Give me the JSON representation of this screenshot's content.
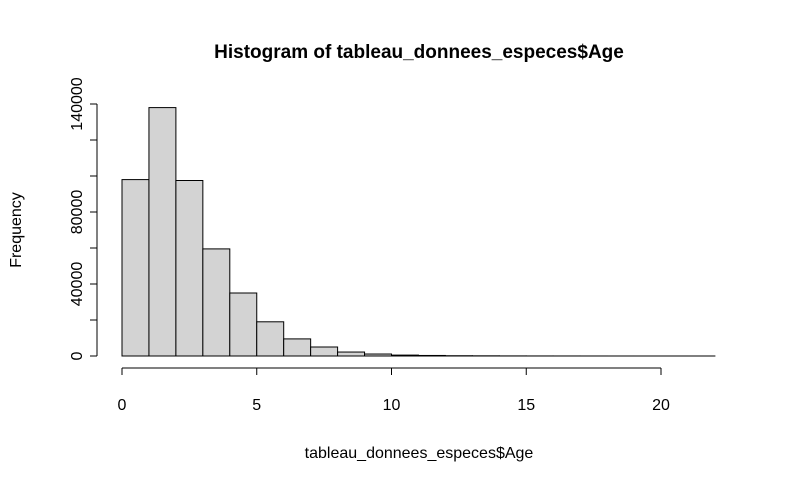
{
  "chart_data": {
    "type": "histogram",
    "title": "Histogram of tableau_donnees_especes$Age",
    "x_label": "tableau_donnees_especes$Age",
    "y_label": "Frequency",
    "bins": [
      0,
      1,
      2,
      3,
      4,
      5,
      6,
      7,
      8,
      9,
      10,
      11,
      12,
      13,
      14,
      15,
      16,
      17,
      18,
      19,
      20,
      21,
      22
    ],
    "counts": [
      98000,
      138000,
      97500,
      59500,
      35000,
      19000,
      9500,
      5000,
      2200,
      1100,
      500,
      300,
      150,
      100,
      50,
      30,
      20,
      10,
      5,
      3,
      2,
      1
    ],
    "color": "#d3d3d3",
    "xlim": [
      0,
      20
    ],
    "xticks": [
      0,
      5,
      10,
      15,
      20
    ],
    "ylim": [
      0,
      140000
    ],
    "yticks": [
      0,
      {
        "value": 20000,
        "label": null
      },
      40000,
      {
        "value": 60000,
        "label": null
      },
      80000,
      {
        "value": 100000,
        "label": null
      },
      {
        "value": 120000,
        "label": null
      },
      140000
    ]
  }
}
